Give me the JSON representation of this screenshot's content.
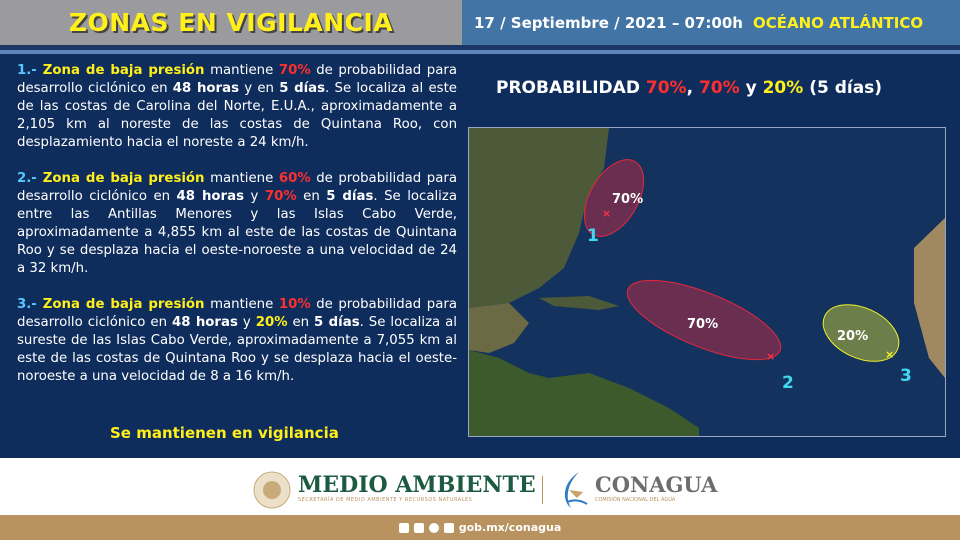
{
  "header": {
    "title": "ZONAS EN VIGILANCIA",
    "date": "17 / Septiembre / 2021 – 07:00h",
    "ocean": "OCÉANO ATLÁNTICO"
  },
  "paragraphs": [
    [
      {
        "t": "1.- ",
        "c": "num"
      },
      {
        "t": "Zona de baja presión",
        "c": "y"
      },
      {
        "t": " mantiene ",
        "c": ""
      },
      {
        "t": "70%",
        "c": "r"
      },
      {
        "t": " de probabilidad para desarrollo ciclónico en ",
        "c": ""
      },
      {
        "t": "48 horas",
        "c": "b"
      },
      {
        "t": " y en ",
        "c": ""
      },
      {
        "t": "5 días",
        "c": "b"
      },
      {
        "t": ". Se localiza al este de las costas de Carolina del Norte, E.U.A., aproximadamente a 2,105 km al noreste de las costas de Quintana Roo, con desplazamiento hacia el noreste a 24 km/h.",
        "c": ""
      }
    ],
    [
      {
        "t": "2.- ",
        "c": "num"
      },
      {
        "t": "Zona de baja presión",
        "c": "y"
      },
      {
        "t": " mantiene ",
        "c": ""
      },
      {
        "t": "60%",
        "c": "r"
      },
      {
        "t": " de probabilidad para desarrollo ciclónico en ",
        "c": ""
      },
      {
        "t": "48 horas",
        "c": "b"
      },
      {
        "t": " y ",
        "c": ""
      },
      {
        "t": "70%",
        "c": "r"
      },
      {
        "t": " en ",
        "c": ""
      },
      {
        "t": "5 días",
        "c": "b"
      },
      {
        "t": ". Se localiza entre las Antillas Menores y las Islas Cabo Verde, aproximadamente a 4,855 km al este de las costas de Quintana Roo y se desplaza hacia el oeste-noroeste a una velocidad de 24 a 32 km/h.",
        "c": ""
      }
    ],
    [
      {
        "t": "3.- ",
        "c": "num"
      },
      {
        "t": "Zona de baja presión",
        "c": "y"
      },
      {
        "t": " mantiene ",
        "c": ""
      },
      {
        "t": "10%",
        "c": "r"
      },
      {
        "t": " de probabilidad para desarrollo ciclónico en ",
        "c": ""
      },
      {
        "t": "48 horas",
        "c": "b"
      },
      {
        "t": " y ",
        "c": ""
      },
      {
        "t": "20%",
        "c": "y"
      },
      {
        "t": " en ",
        "c": ""
      },
      {
        "t": "5 días",
        "c": "b"
      },
      {
        "t": ". Se localiza al sureste de las Islas Cabo Verde, aproximadamente a 7,055 km al este de las costas de Quintana Roo y se desplaza hacia el oeste-noroeste a una velocidad de 8 a 16 km/h.",
        "c": ""
      }
    ]
  ],
  "vigilance": "Se mantienen en vigilancia",
  "probability": {
    "label": "PROBABILIDAD",
    "p1": "70%",
    "sep1": ", ",
    "p2": "70%",
    "sep2": " y ",
    "p3": "20%",
    "suffix": " (5 días)"
  },
  "map": {
    "zones": [
      {
        "id": "1",
        "pct": "70%",
        "color": "#e8283c"
      },
      {
        "id": "2",
        "pct": "70%",
        "color": "#e8283c"
      },
      {
        "id": "3",
        "pct": "20%",
        "color": "#f0f02a"
      }
    ]
  },
  "footer": {
    "medio_ambiente": "MEDIO AMBIENTE",
    "medio_sub": "SECRETARÍA DE MEDIO AMBIENTE Y RECURSOS NATURALES",
    "conagua": "CONAGUA",
    "conagua_sub": "COMISIÓN NACIONAL DEL AGUA",
    "url": "gob.mx/conagua"
  },
  "colors": {
    "yellow": "#ffef1a",
    "red": "#ff2e2e",
    "navy": "#0f2d5c",
    "brown": "#b8935f"
  }
}
